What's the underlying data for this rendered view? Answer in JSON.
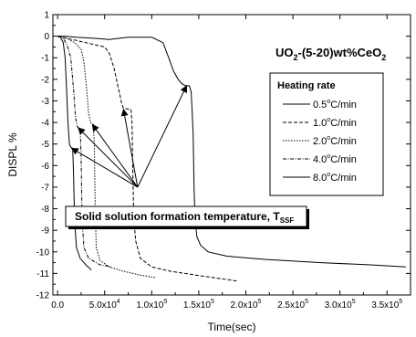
{
  "chart_data": {
    "type": "line",
    "title_parts": [
      "UO",
      "2",
      "-(5-20)wt%CeO",
      "2"
    ],
    "xlabel": "Time(sec)",
    "ylabel": "DISPL %",
    "xlim": [
      -5000,
      375000
    ],
    "ylim": [
      -12,
      1
    ],
    "x_ticks": [
      0,
      50000,
      100000,
      150000,
      200000,
      250000,
      300000,
      350000
    ],
    "x_tick_labels": [
      {
        "mant": "0.0",
        "exp": ""
      },
      {
        "mant": "5.0x10",
        "exp": "4"
      },
      {
        "mant": "1.0x10",
        "exp": "5"
      },
      {
        "mant": "1.5x10",
        "exp": "5"
      },
      {
        "mant": "2.0x10",
        "exp": "5"
      },
      {
        "mant": "2.5x10",
        "exp": "5"
      },
      {
        "mant": "3.0x10",
        "exp": "5"
      },
      {
        "mant": "3.5x10",
        "exp": "5"
      }
    ],
    "y_ticks": [
      1,
      0,
      -1,
      -2,
      -3,
      -4,
      -5,
      -6,
      -7,
      -8,
      -9,
      -10,
      -11,
      -12
    ],
    "y_tick_labels": [
      "1",
      "0",
      "-1",
      "-2",
      "-3",
      "-4",
      "-5",
      "-6",
      "-7",
      "-8",
      "-9",
      "-10",
      "-11",
      "-12"
    ],
    "legend": {
      "title": "Heating rate",
      "placement": "right",
      "entries": [
        {
          "mant": "0.5",
          "unit": "C/min",
          "dash": ""
        },
        {
          "mant": "1.0",
          "unit": "C/min",
          "dash": "4,2"
        },
        {
          "mant": "2.0",
          "unit": "C/min",
          "dash": "1.5,1.5"
        },
        {
          "mant": "4.0",
          "unit": "C/min",
          "dash": "4,1.5,1,1.5"
        },
        {
          "mant": "8.0",
          "unit": "C/min",
          "dash": ""
        }
      ]
    },
    "annotation": {
      "text": "Solid solution formation temperature, T",
      "sub": "SSF"
    },
    "series": [
      {
        "dash": "",
        "points": [
          [
            0,
            0
          ],
          [
            8000,
            0
          ],
          [
            20000,
            -0.05
          ],
          [
            40000,
            -0.1
          ],
          [
            55000,
            -0.15
          ],
          [
            65000,
            -0.1
          ],
          [
            75000,
            -0.05
          ],
          [
            100000,
            -0.05
          ],
          [
            112000,
            -0.3
          ],
          [
            118000,
            -1.0
          ],
          [
            123000,
            -1.6
          ],
          [
            128000,
            -2.0
          ],
          [
            132000,
            -2.2
          ],
          [
            136000,
            -2.3
          ],
          [
            140000,
            -2.3
          ],
          [
            142000,
            -2.6
          ],
          [
            144000,
            -4.5
          ],
          [
            145000,
            -7.0
          ],
          [
            146000,
            -8.5
          ],
          [
            148000,
            -9.3
          ],
          [
            152000,
            -9.7
          ],
          [
            160000,
            -10.0
          ],
          [
            180000,
            -10.2
          ],
          [
            220000,
            -10.35
          ],
          [
            280000,
            -10.5
          ],
          [
            330000,
            -10.6
          ],
          [
            370000,
            -10.7
          ]
        ]
      },
      {
        "dash": "4,2",
        "points": [
          [
            0,
            0
          ],
          [
            10000,
            -0.1
          ],
          [
            20000,
            -0.2
          ],
          [
            30000,
            -0.3
          ],
          [
            40000,
            -0.4
          ],
          [
            50000,
            -0.5
          ],
          [
            55000,
            -0.8
          ],
          [
            60000,
            -1.5
          ],
          [
            65000,
            -2.5
          ],
          [
            68000,
            -3.1
          ],
          [
            70000,
            -3.35
          ],
          [
            78000,
            -3.4
          ],
          [
            79000,
            -4.0
          ],
          [
            80000,
            -6.5
          ],
          [
            81000,
            -8.5
          ],
          [
            83000,
            -9.5
          ],
          [
            88000,
            -10.3
          ],
          [
            100000,
            -10.7
          ],
          [
            120000,
            -10.9
          ],
          [
            150000,
            -11.1
          ],
          [
            190000,
            -11.35
          ]
        ]
      },
      {
        "dash": "1.5,1.5",
        "points": [
          [
            0,
            0
          ],
          [
            10000,
            -0.1
          ],
          [
            18000,
            -0.3
          ],
          [
            25000,
            -0.6
          ],
          [
            28000,
            -1.2
          ],
          [
            31000,
            -2.5
          ],
          [
            33000,
            -3.6
          ],
          [
            35000,
            -4.0
          ],
          [
            38000,
            -4.1
          ],
          [
            39000,
            -5.0
          ],
          [
            40000,
            -8.0
          ],
          [
            41000,
            -9.8
          ],
          [
            45000,
            -10.4
          ],
          [
            55000,
            -10.7
          ],
          [
            70000,
            -10.9
          ],
          [
            90000,
            -11.1
          ],
          [
            105000,
            -11.2
          ]
        ]
      },
      {
        "dash": "4,1.5,1,1.5",
        "points": [
          [
            0,
            0
          ],
          [
            6000,
            -0.1
          ],
          [
            10000,
            -0.4
          ],
          [
            14000,
            -1.0
          ],
          [
            17000,
            -2.5
          ],
          [
            19000,
            -3.8
          ],
          [
            21000,
            -4.2
          ],
          [
            24000,
            -4.3
          ],
          [
            25000,
            -5.5
          ],
          [
            26000,
            -8.5
          ],
          [
            28000,
            -9.8
          ],
          [
            33000,
            -10.3
          ],
          [
            45000,
            -10.6
          ],
          [
            58000,
            -10.7
          ]
        ]
      },
      {
        "dash": "",
        "points": [
          [
            0,
            0
          ],
          [
            3000,
            -0.05
          ],
          [
            6000,
            -0.3
          ],
          [
            8000,
            -1.0
          ],
          [
            9500,
            -2.5
          ],
          [
            11000,
            -4.0
          ],
          [
            12500,
            -5.0
          ],
          [
            14000,
            -5.15
          ],
          [
            16000,
            -5.2
          ],
          [
            17000,
            -6.5
          ],
          [
            18000,
            -8.5
          ],
          [
            20000,
            -9.8
          ],
          [
            24000,
            -10.3
          ],
          [
            30000,
            -10.6
          ],
          [
            36000,
            -10.85
          ]
        ]
      }
    ],
    "arrows": [
      {
        "from": [
          85000,
          -7.0
        ],
        "to": [
          137000,
          -2.3
        ]
      },
      {
        "from": [
          85000,
          -7.0
        ],
        "to": [
          70000,
          -3.4
        ]
      },
      {
        "from": [
          85000,
          -7.0
        ],
        "to": [
          37000,
          -4.1
        ]
      },
      {
        "from": [
          85000,
          -7.0
        ],
        "to": [
          22000,
          -4.25
        ]
      },
      {
        "from": [
          85000,
          -7.0
        ],
        "to": [
          15000,
          -5.2
        ]
      }
    ]
  }
}
